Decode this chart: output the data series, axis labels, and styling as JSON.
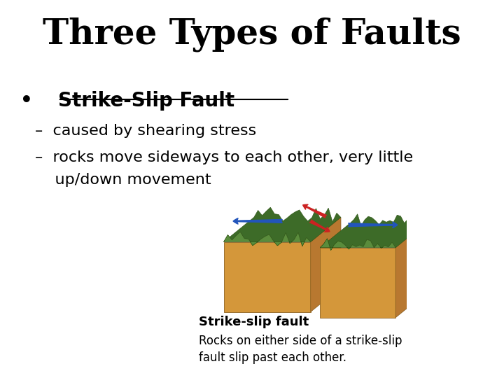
{
  "title": "Three Types of Faults",
  "title_fontsize": 36,
  "title_fontweight": "bold",
  "title_font": "serif",
  "bullet_label_bullet": "•  ",
  "bullet_label_text": "Strike-Slip Fault",
  "bullet_fontsize": 20,
  "sub_bullet_1": "–  caused by shearing stress",
  "sub_bullet_2a": "–  rocks move sideways to each other, very little",
  "sub_bullet_2b": "    up/down movement",
  "sub_bullet_fontsize": 16,
  "caption_bold": "Strike-slip fault",
  "caption_normal": "Rocks on either side of a strike-slip\nfault slip past each other.",
  "caption_fontsize": 13,
  "background_color": "#ffffff",
  "text_color": "#000000",
  "sandy": "#D4973A",
  "sandy_dark": "#B87830",
  "green_top": "#5A8C3C",
  "green_dark": "#3D6B28",
  "blue_arrow": "#2255BB",
  "red_arrow": "#CC2222"
}
